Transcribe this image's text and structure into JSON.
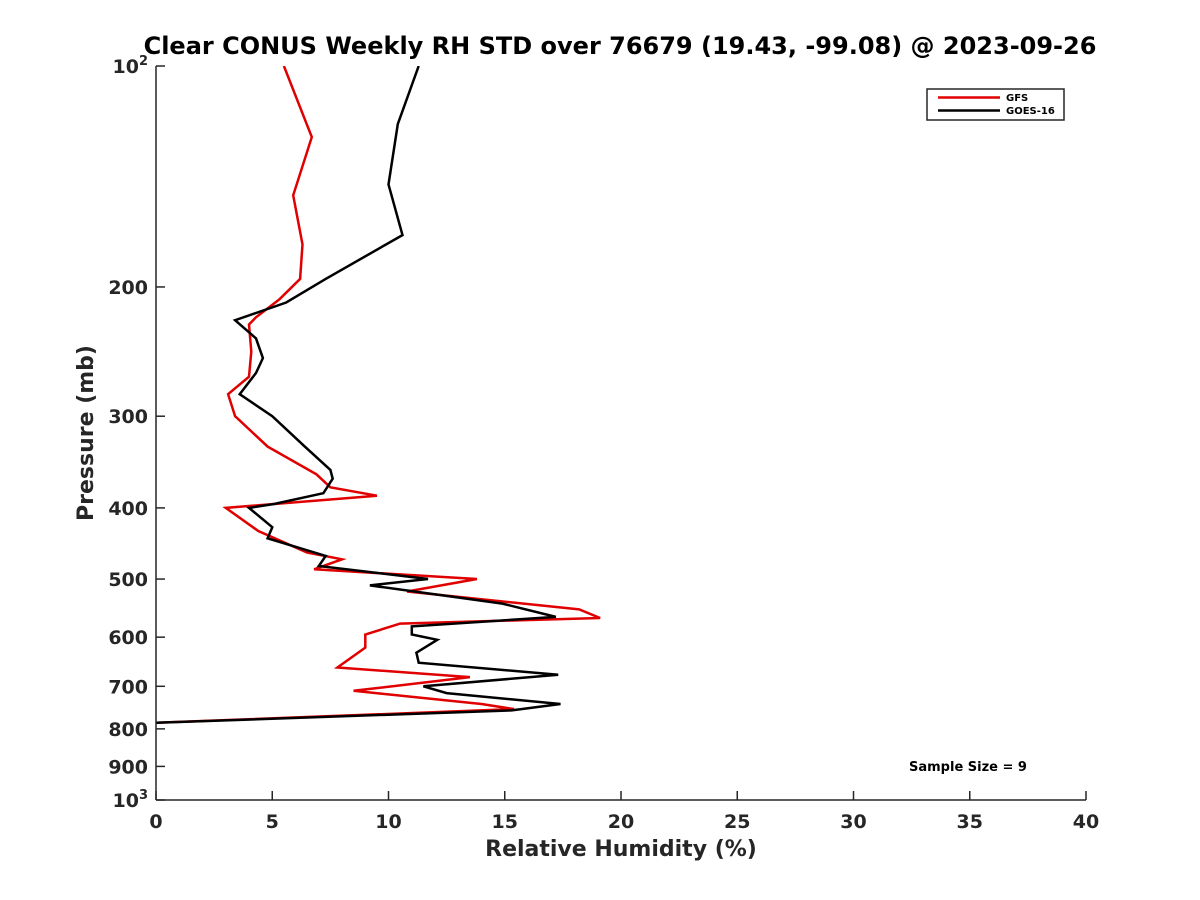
{
  "chart_data": {
    "type": "line",
    "title": "Clear CONUS Weekly RH STD over 76679 (19.43, -99.08) @ 2023-09-26",
    "xlabel": "Relative Humidity (%)",
    "ylabel": "Pressure (mb)",
    "xlim": [
      0,
      40
    ],
    "ylim": [
      100,
      1000
    ],
    "y_scale": "log",
    "y_reversed": true,
    "grid": false,
    "legend_position": "top-right",
    "x_ticks": [
      "0",
      "5",
      "10",
      "15",
      "20",
      "25",
      "30",
      "35",
      "40"
    ],
    "x_tick_values": [
      0,
      5,
      10,
      15,
      20,
      25,
      30,
      35,
      40
    ],
    "y_ticks": [
      {
        "value": 100,
        "base": "10",
        "exp": "2"
      },
      {
        "value": 200,
        "label": "200"
      },
      {
        "value": 300,
        "label": "300"
      },
      {
        "value": 400,
        "label": "400"
      },
      {
        "value": 500,
        "label": "500"
      },
      {
        "value": 600,
        "label": "600"
      },
      {
        "value": 700,
        "label": "700"
      },
      {
        "value": 800,
        "label": "800"
      },
      {
        "value": 900,
        "label": "900"
      },
      {
        "value": 1000,
        "base": "10",
        "exp": "3"
      }
    ],
    "series": [
      {
        "name": "GFS",
        "color": "#e00000",
        "points": [
          [
            5.5,
            100
          ],
          [
            6.7,
            125
          ],
          [
            5.9,
            150
          ],
          [
            6.3,
            175
          ],
          [
            6.2,
            195
          ],
          [
            5.3,
            208
          ],
          [
            4.3,
            220
          ],
          [
            4.0,
            225
          ],
          [
            4.1,
            245
          ],
          [
            4.0,
            265
          ],
          [
            3.1,
            280
          ],
          [
            3.4,
            300
          ],
          [
            4.8,
            330
          ],
          [
            6.9,
            360
          ],
          [
            7.5,
            375
          ],
          [
            9.5,
            385
          ],
          [
            3.0,
            400
          ],
          [
            4.4,
            430
          ],
          [
            6.5,
            460
          ],
          [
            8.0,
            470
          ],
          [
            6.8,
            485
          ],
          [
            13.8,
            500
          ],
          [
            10.8,
            520
          ],
          [
            18.2,
            550
          ],
          [
            19.1,
            565
          ],
          [
            10.5,
            575
          ],
          [
            9.0,
            595
          ],
          [
            9.0,
            620
          ],
          [
            7.8,
            660
          ],
          [
            13.5,
            680
          ],
          [
            8.5,
            710
          ],
          [
            14.0,
            740
          ],
          [
            15.4,
            752
          ],
          [
            0,
            785
          ]
        ]
      },
      {
        "name": "GOES-16",
        "color": "#000000",
        "points": [
          [
            11.3,
            100
          ],
          [
            10.4,
            120
          ],
          [
            10.0,
            145
          ],
          [
            10.6,
            170
          ],
          [
            7.3,
            195
          ],
          [
            5.6,
            210
          ],
          [
            3.4,
            222
          ],
          [
            4.3,
            235
          ],
          [
            4.6,
            250
          ],
          [
            4.3,
            262
          ],
          [
            3.6,
            280
          ],
          [
            5.0,
            300
          ],
          [
            6.4,
            330
          ],
          [
            7.5,
            355
          ],
          [
            7.6,
            365
          ],
          [
            7.2,
            382
          ],
          [
            5.1,
            395
          ],
          [
            4.0,
            400
          ],
          [
            5.0,
            425
          ],
          [
            4.8,
            440
          ],
          [
            7.3,
            465
          ],
          [
            7.0,
            480
          ],
          [
            11.7,
            500
          ],
          [
            9.2,
            510
          ],
          [
            14.9,
            540
          ],
          [
            17.2,
            563
          ],
          [
            11.0,
            580
          ],
          [
            11.0,
            595
          ],
          [
            12.1,
            605
          ],
          [
            11.2,
            630
          ],
          [
            11.3,
            650
          ],
          [
            17.3,
            675
          ],
          [
            11.5,
            700
          ],
          [
            12.5,
            715
          ],
          [
            17.4,
            740
          ],
          [
            15.3,
            755
          ],
          [
            0,
            785
          ]
        ]
      }
    ],
    "annotation": "Sample Size = 9"
  }
}
